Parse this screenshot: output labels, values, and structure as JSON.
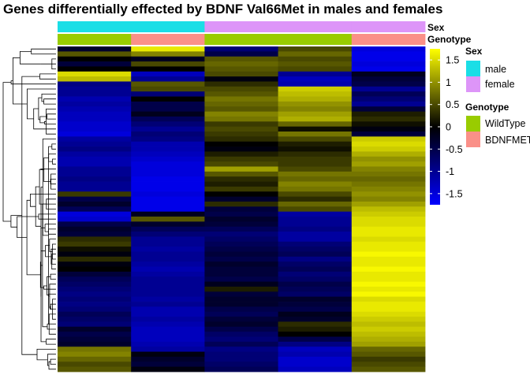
{
  "chart_data": {
    "type": "heatmap",
    "title": "Genes differentially effected by BDNF Val66Met in males and females",
    "columns": [
      {
        "sex": "male",
        "genotype": "WildType"
      },
      {
        "sex": "male",
        "genotype": "BDNFMET"
      },
      {
        "sex": "female",
        "genotype": "WildType"
      },
      {
        "sex": "female",
        "genotype": "WildType"
      },
      {
        "sex": "female",
        "genotype": "BDNFMET"
      }
    ],
    "annotation_tracks": [
      "Sex",
      "Genotype"
    ],
    "legend": {
      "sex": {
        "title": "Sex",
        "items": [
          {
            "label": "male",
            "color": "#1ADEE6"
          },
          {
            "label": "female",
            "color": "#DD95F8"
          }
        ]
      },
      "genotype": {
        "title": "Genotype",
        "items": [
          {
            "label": "WildType",
            "color": "#99CC00"
          },
          {
            "label": "BDNFMET",
            "color": "#FA9088"
          }
        ]
      }
    },
    "colorbar": {
      "low_color": "#0000FF",
      "mid_color": "#000000",
      "high_color": "#FFFF00",
      "range": [
        -1.75,
        1.75
      ],
      "ticks": [
        -1.5,
        -1,
        -0.5,
        0,
        0.5,
        1,
        1.5
      ],
      "tick_labels": [
        "-1.5",
        "-1",
        "-0.5",
        "0",
        "0.5",
        "1",
        "1.5"
      ]
    },
    "values": [
      [
        -0.3,
        1.6,
        -0.8,
        0.5,
        -1.5
      ],
      [
        0.6,
        0.9,
        -0.5,
        0.7,
        -1.6
      ],
      [
        0.0,
        -0.2,
        0.6,
        0.5,
        -1.6
      ],
      [
        -0.4,
        0.5,
        0.7,
        0.6,
        -1.5
      ],
      [
        0.0,
        0.0,
        0.6,
        0.5,
        -1.6
      ],
      [
        1.5,
        -1.3,
        0.5,
        -1.0,
        -0.2
      ],
      [
        1.3,
        -1.0,
        -0.1,
        -1.3,
        -0.4
      ],
      [
        -0.9,
        0.6,
        0.3,
        -1.2,
        -0.5
      ],
      [
        -1.0,
        0.5,
        0.5,
        1.4,
        -1.0
      ],
      [
        -1.0,
        -0.8,
        0.6,
        1.3,
        -0.6
      ],
      [
        -1.2,
        0.0,
        0.8,
        1.2,
        -0.8
      ],
      [
        -1.1,
        -0.5,
        0.7,
        1.0,
        -1.0
      ],
      [
        -1.2,
        -0.5,
        0.6,
        0.9,
        -0.4
      ],
      [
        -1.3,
        -0.2,
        0.9,
        1.1,
        0.2
      ],
      [
        -1.3,
        -0.6,
        0.8,
        1.2,
        0.3
      ],
      [
        -1.4,
        -0.8,
        0.4,
        0.7,
        0.1
      ],
      [
        -1.4,
        -1.0,
        0.5,
        0.1,
        -0.1
      ],
      [
        -1.5,
        -0.8,
        0.4,
        0.8,
        -0.4
      ],
      [
        -1.1,
        -0.9,
        0.3,
        0.5,
        1.4
      ],
      [
        -1.0,
        -1.2,
        0.0,
        0.2,
        1.5
      ],
      [
        -0.9,
        -1.2,
        -0.1,
        0.1,
        1.4
      ],
      [
        -1.1,
        -1.3,
        0.2,
        0.3,
        1.2
      ],
      [
        -1.2,
        -1.4,
        0.4,
        0.4,
        1.0
      ],
      [
        -1.2,
        -1.5,
        0.5,
        0.4,
        1.1
      ],
      [
        -1.0,
        -1.5,
        1.1,
        0.5,
        0.9
      ],
      [
        -1.0,
        -1.5,
        0.6,
        0.8,
        0.8
      ],
      [
        -0.9,
        -1.6,
        0.3,
        0.7,
        0.7
      ],
      [
        -1.0,
        -1.6,
        0.2,
        0.9,
        0.8
      ],
      [
        -1.0,
        -1.6,
        0.4,
        0.8,
        0.9
      ],
      [
        0.4,
        -1.5,
        0.0,
        0.5,
        1.0
      ],
      [
        -0.5,
        -1.6,
        -0.3,
        0.3,
        0.9
      ],
      [
        -0.3,
        -1.6,
        0.3,
        0.7,
        1.1
      ],
      [
        -0.6,
        -1.6,
        -0.4,
        0.5,
        1.3
      ],
      [
        -1.5,
        -0.2,
        -0.5,
        -1.1,
        1.4
      ],
      [
        -1.4,
        0.6,
        -0.3,
        -1.0,
        1.5
      ],
      [
        -0.5,
        -0.3,
        -0.4,
        -1.0,
        1.5
      ],
      [
        -0.3,
        -0.6,
        -0.6,
        -0.9,
        1.6
      ],
      [
        -0.4,
        -0.8,
        -0.8,
        -1.1,
        1.6
      ],
      [
        0.3,
        -1.0,
        -0.7,
        -1.1,
        1.5
      ],
      [
        0.4,
        -1.0,
        -0.6,
        -0.8,
        1.6
      ],
      [
        0.1,
        -1.1,
        -0.5,
        -0.7,
        1.6
      ],
      [
        -0.1,
        -1.0,
        -0.4,
        -0.6,
        1.7
      ],
      [
        0.3,
        -1.0,
        -0.5,
        -0.9,
        1.6
      ],
      [
        -0.1,
        -1.1,
        -0.3,
        -0.7,
        1.6
      ],
      [
        0.0,
        -1.2,
        -0.4,
        -0.6,
        1.7
      ],
      [
        -0.4,
        -1.1,
        -0.4,
        -0.8,
        1.6
      ],
      [
        -0.6,
        -1.0,
        -0.5,
        -0.7,
        1.6
      ],
      [
        -0.7,
        -1.0,
        -0.2,
        -0.5,
        1.7
      ],
      [
        -0.8,
        -1.0,
        0.2,
        -0.6,
        1.6
      ],
      [
        -0.9,
        -1.0,
        -0.4,
        -0.7,
        1.7
      ],
      [
        -0.8,
        -1.1,
        -0.3,
        -0.3,
        1.5
      ],
      [
        -0.9,
        -1.0,
        -0.3,
        -0.4,
        1.6
      ],
      [
        -0.8,
        -1.2,
        -0.5,
        -0.5,
        1.6
      ],
      [
        -0.6,
        -1.2,
        -0.6,
        -0.2,
        1.5
      ],
      [
        -0.7,
        -1.1,
        -0.4,
        -0.3,
        1.4
      ],
      [
        -0.8,
        -1.2,
        -0.3,
        0.3,
        1.3
      ],
      [
        -0.3,
        -1.3,
        -0.5,
        0.2,
        1.4
      ],
      [
        -0.5,
        -1.3,
        -0.7,
        0.0,
        1.3
      ],
      [
        -0.4,
        -1.3,
        -0.8,
        -0.5,
        1.2
      ],
      [
        -0.3,
        -1.2,
        -0.6,
        -0.9,
        1.1
      ],
      [
        0.8,
        -1.1,
        -0.9,
        -1.3,
        0.7
      ],
      [
        0.9,
        -0.1,
        -0.8,
        -1.2,
        0.6
      ],
      [
        0.7,
        -0.3,
        -0.8,
        -1.4,
        0.4
      ],
      [
        0.5,
        -0.4,
        -0.7,
        -1.4,
        0.5
      ],
      [
        0.6,
        -0.1,
        -0.6,
        -1.3,
        0.6
      ]
    ]
  }
}
